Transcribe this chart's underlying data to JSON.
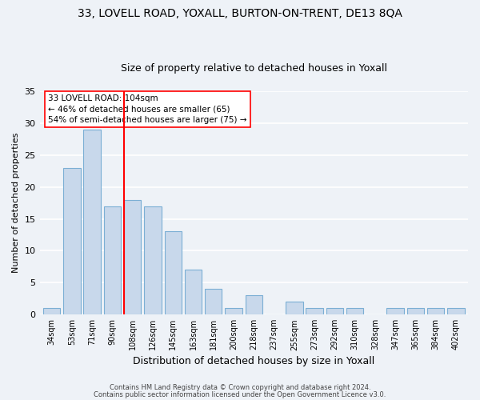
{
  "title1": "33, LOVELL ROAD, YOXALL, BURTON-ON-TRENT, DE13 8QA",
  "title2": "Size of property relative to detached houses in Yoxall",
  "xlabel": "Distribution of detached houses by size in Yoxall",
  "ylabel": "Number of detached properties",
  "categories": [
    "34sqm",
    "53sqm",
    "71sqm",
    "90sqm",
    "108sqm",
    "126sqm",
    "145sqm",
    "163sqm",
    "181sqm",
    "200sqm",
    "218sqm",
    "237sqm",
    "255sqm",
    "273sqm",
    "292sqm",
    "310sqm",
    "328sqm",
    "347sqm",
    "365sqm",
    "384sqm",
    "402sqm"
  ],
  "values": [
    1,
    23,
    29,
    17,
    18,
    17,
    13,
    7,
    4,
    1,
    3,
    0,
    2,
    1,
    1,
    1,
    0,
    1,
    1,
    1,
    1
  ],
  "bar_color": "#c8d8eb",
  "bar_edgecolor": "#7bafd4",
  "red_line_index": 4,
  "annotation_line1": "33 LOVELL ROAD: 104sqm",
  "annotation_line2": "← 46% of detached houses are smaller (65)",
  "annotation_line3": "54% of semi-detached houses are larger (75) →",
  "footnote1": "Contains HM Land Registry data © Crown copyright and database right 2024.",
  "footnote2": "Contains public sector information licensed under the Open Government Licence v3.0.",
  "ylim": [
    0,
    35
  ],
  "yticks": [
    0,
    5,
    10,
    15,
    20,
    25,
    30,
    35
  ],
  "bg_color": "#eef2f7",
  "grid_color": "white",
  "title1_fontsize": 10,
  "title2_fontsize": 9
}
